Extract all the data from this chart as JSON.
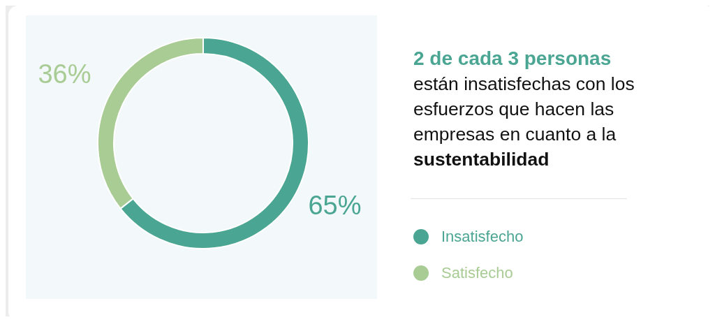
{
  "chart_data": {
    "type": "donut",
    "title": "2 de cada 3 personas",
    "subtitle": "están insatisfechas con los esfuerzos que hacen las empresas en cuanto a la sustentabilidad",
    "categories": [
      "Insatisfecho",
      "Satisfecho"
    ],
    "values": [
      65,
      36
    ],
    "colors": [
      "#4aa692",
      "#a9cc95"
    ],
    "value_labels": [
      "65%",
      "36%"
    ],
    "legend": "right"
  }
}
